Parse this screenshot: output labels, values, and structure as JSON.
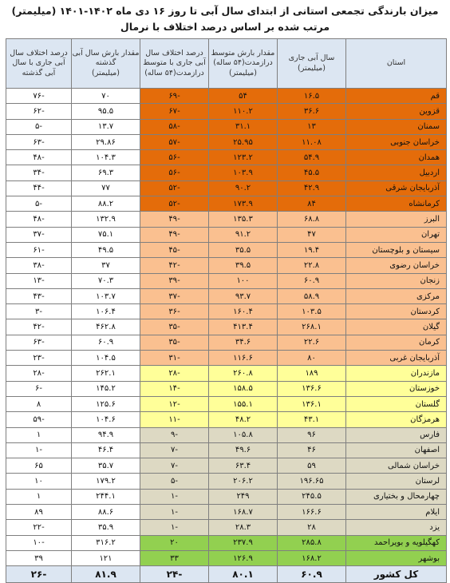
{
  "title_line1": "میزان بارندگی تجمعی استانی از ابتدای سال آبی تا روز ۱۶ دی ماه ۱۴۰۲-۱۴۰۱ (میلیمتر)",
  "title_line2": "مرتب شده بر اساس درصد اختلاف با نرمال",
  "colors": {
    "header": "#dce6f2",
    "dark_orange": "#e46c0a",
    "light_orange": "#fac090",
    "yellow": "#ffff99",
    "gray": "#ddd9c3",
    "green": "#92d050",
    "white": "#ffffff",
    "total": "#dce6f2"
  },
  "headers": {
    "province": "استان",
    "current": "سال آبی جاری",
    "current_unit": "(میلیمتر)",
    "normal": "مقدار بارش متوسط درازمدت(۵۴ ساله)",
    "normal_unit": "(میلیمتر)",
    "diff_normal": "درصد اختلاف سال آبی جاری با متوسط درازمدت(۵۴ ساله)",
    "last_year": "مقدار بارش سال آبی گذشته",
    "last_year_unit": "(میلیمتر)",
    "diff_last": "درصد اختلاف سال آبی جاری با سال آبی گذشته"
  },
  "rows": [
    {
      "province": "قم",
      "current": "۱۶.۵",
      "normal": "۵۴",
      "diff_normal": "-۶۹",
      "last_year": "۷۰",
      "diff_last": "-۷۶",
      "group": "dark_orange"
    },
    {
      "province": "قزوین",
      "current": "۳۶.۶",
      "normal": "۱۱۰.۲",
      "diff_normal": "-۶۷",
      "last_year": "۹۵.۵",
      "diff_last": "-۶۲",
      "group": "dark_orange"
    },
    {
      "province": "سمنان",
      "current": "۱۳",
      "normal": "۳۱.۱",
      "diff_normal": "-۵۸",
      "last_year": "۱۳.۷",
      "diff_last": "-۵",
      "group": "dark_orange"
    },
    {
      "province": "خراسان جنوبی",
      "current": "۱۱.۰۸",
      "normal": "۲۵.۹۵",
      "diff_normal": "-۵۷",
      "last_year": "۲۹.۸۶",
      "diff_last": "-۶۳",
      "group": "dark_orange"
    },
    {
      "province": "همدان",
      "current": "۵۴.۹",
      "normal": "۱۲۳.۲",
      "diff_normal": "-۵۶",
      "last_year": "۱۰۴.۳",
      "diff_last": "-۴۸",
      "group": "dark_orange"
    },
    {
      "province": "اردبیل",
      "current": "۴۵.۵",
      "normal": "۱۰۳.۹",
      "diff_normal": "-۵۶",
      "last_year": "۶۹.۳",
      "diff_last": "-۳۴",
      "group": "dark_orange"
    },
    {
      "province": "آذربایجان شرقی",
      "current": "۴۲.۹",
      "normal": "۹۰.۲",
      "diff_normal": "-۵۲",
      "last_year": "۷۷",
      "diff_last": "-۴۴",
      "group": "dark_orange"
    },
    {
      "province": "کرمانشاه",
      "current": "۸۴",
      "normal": "۱۷۳.۹",
      "diff_normal": "-۵۲",
      "last_year": "۸۸.۲",
      "diff_last": "-۵",
      "group": "dark_orange"
    },
    {
      "province": "البرز",
      "current": "۶۸.۸",
      "normal": "۱۳۵.۳",
      "diff_normal": "-۴۹",
      "last_year": "۱۳۲.۹",
      "diff_last": "-۴۸",
      "group": "light_orange"
    },
    {
      "province": "تهران",
      "current": "۴۷",
      "normal": "۹۱.۲",
      "diff_normal": "-۴۹",
      "last_year": "۷۵.۱",
      "diff_last": "-۳۷",
      "group": "light_orange"
    },
    {
      "province": "سیستان و بلوچستان",
      "current": "۱۹.۴",
      "normal": "۳۵.۵",
      "diff_normal": "-۴۵",
      "last_year": "۴۹.۵",
      "diff_last": "-۶۱",
      "group": "light_orange"
    },
    {
      "province": "خراسان رضوی",
      "current": "۲۲.۸",
      "normal": "۳۹.۵",
      "diff_normal": "-۴۲",
      "last_year": "۳۷",
      "diff_last": "-۳۸",
      "group": "light_orange"
    },
    {
      "province": "زنجان",
      "current": "۶۰.۹",
      "normal": "۱۰۰",
      "diff_normal": "-۳۹",
      "last_year": "۷۰.۳",
      "diff_last": "-۱۳",
      "group": "light_orange"
    },
    {
      "province": "مرکزی",
      "current": "۵۸.۹",
      "normal": "۹۳.۷",
      "diff_normal": "-۳۷",
      "last_year": "۱۰۳.۷",
      "diff_last": "-۴۳",
      "group": "light_orange"
    },
    {
      "province": "کردستان",
      "current": "۱۰۳.۵",
      "normal": "۱۶۰.۴",
      "diff_normal": "-۳۶",
      "last_year": "۱۰۶.۴",
      "diff_last": "-۳",
      "group": "light_orange"
    },
    {
      "province": "گیلان",
      "current": "۲۶۸.۱",
      "normal": "۴۱۳.۴",
      "diff_normal": "-۳۵",
      "last_year": "۴۶۲.۸",
      "diff_last": "-۴۲",
      "group": "light_orange"
    },
    {
      "province": "کرمان",
      "current": "۲۲.۶",
      "normal": "۳۴.۶",
      "diff_normal": "-۳۵",
      "last_year": "۶۰.۹",
      "diff_last": "-۶۳",
      "group": "light_orange"
    },
    {
      "province": "آذربایجان غربی",
      "current": "۸۰",
      "normal": "۱۱۶.۶",
      "diff_normal": "-۳۱",
      "last_year": "۱۰۴.۵",
      "diff_last": "-۲۳",
      "group": "light_orange"
    },
    {
      "province": "مازندران",
      "current": "۱۸۹",
      "normal": "۲۶۰.۸",
      "diff_normal": "-۲۸",
      "last_year": "۲۶۲.۱",
      "diff_last": "-۲۸",
      "group": "yellow"
    },
    {
      "province": "خوزستان",
      "current": "۱۳۶.۶",
      "normal": "۱۵۸.۵",
      "diff_normal": "-۱۴",
      "last_year": "۱۴۵.۲",
      "diff_last": "-۶",
      "group": "yellow"
    },
    {
      "province": "گلستان",
      "current": "۱۳۶.۱",
      "normal": "۱۵۵.۱",
      "diff_normal": "-۱۲",
      "last_year": "۱۲۵.۶",
      "diff_last": "۸",
      "group": "yellow"
    },
    {
      "province": "هرمزگان",
      "current": "۴۳.۱",
      "normal": "۴۸.۲",
      "diff_normal": "-۱۱",
      "last_year": "۱۰۴.۶",
      "diff_last": "-۵۹",
      "group": "yellow"
    },
    {
      "province": "فارس",
      "current": "۹۶",
      "normal": "۱۰۵.۸",
      "diff_normal": "-۹",
      "last_year": "۹۴.۹",
      "diff_last": "۱",
      "group": "gray"
    },
    {
      "province": "اصفهان",
      "current": "۴۶",
      "normal": "۴۹.۶",
      "diff_normal": "-۷",
      "last_year": "۴۶.۴",
      "diff_last": "-۱",
      "group": "gray"
    },
    {
      "province": "خراسان شمالی",
      "current": "۵۹",
      "normal": "۶۳.۴",
      "diff_normal": "-۷",
      "last_year": "۳۵.۷",
      "diff_last": "۶۵",
      "group": "gray"
    },
    {
      "province": "لرستان",
      "current": "۱۹۶.۶۵",
      "normal": "۲۰۶.۲",
      "diff_normal": "-۵",
      "last_year": "۱۷۹.۲",
      "diff_last": "۱۰",
      "group": "gray"
    },
    {
      "province": "چهارمحال و بختیاری",
      "current": "۲۴۵.۵",
      "normal": "۲۴۹",
      "diff_normal": "-۱",
      "last_year": "۲۴۴.۱",
      "diff_last": "۱",
      "group": "gray"
    },
    {
      "province": "ایلام",
      "current": "۱۶۶.۶",
      "normal": "۱۶۸.۷",
      "diff_normal": "-۱",
      "last_year": "۸۸.۶",
      "diff_last": "۸۹",
      "group": "gray"
    },
    {
      "province": "یزد",
      "current": "۲۸",
      "normal": "۲۸.۳",
      "diff_normal": "-۱",
      "last_year": "۳۵.۹",
      "diff_last": "-۲۲",
      "group": "gray"
    },
    {
      "province": "کهگیلویه و بویراحمد",
      "current": "۲۸۵.۸",
      "normal": "۲۳۷.۹",
      "diff_normal": "۲۰",
      "last_year": "۳۱۶.۲",
      "diff_last": "-۱۰",
      "group": "green"
    },
    {
      "province": "بوشهر",
      "current": "۱۶۸.۲",
      "normal": "۱۲۶.۹",
      "diff_normal": "۳۳",
      "last_year": "۱۲۱",
      "diff_last": "۳۹",
      "group": "green"
    }
  ],
  "total": {
    "province": "کل کشور",
    "current": "۶۰.۹",
    "normal": "۸۰.۱",
    "diff_normal": "-۲۴",
    "last_year": "۸۱.۹",
    "diff_last": "-۲۶"
  }
}
